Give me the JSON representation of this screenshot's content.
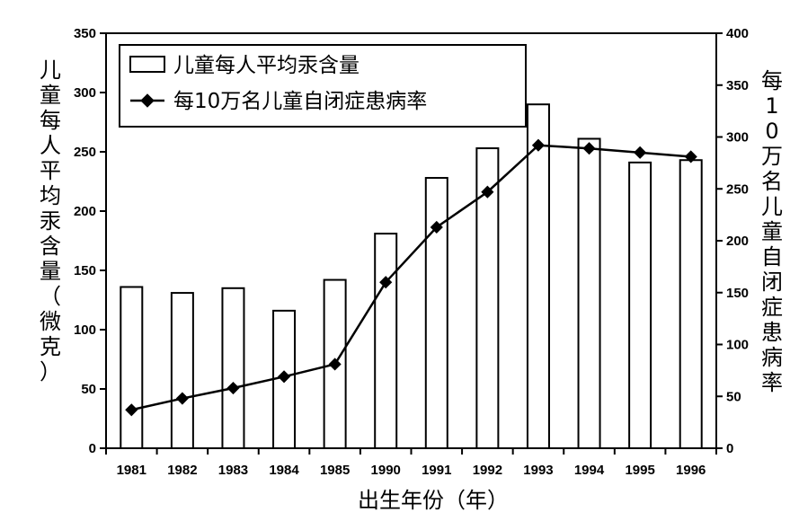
{
  "chart_data": {
    "type": "bar",
    "categories": [
      "1981",
      "1982",
      "1983",
      "1984",
      "1985",
      "1990",
      "1991",
      "1992",
      "1993",
      "1994",
      "1995",
      "1996"
    ],
    "series": [
      {
        "name": "儿童每人平均汞含量",
        "type": "bar",
        "axis": "left",
        "values": [
          136,
          131,
          135,
          116,
          142,
          181,
          228,
          253,
          290,
          261,
          241,
          243
        ]
      },
      {
        "name": "每10万名儿童自闭症患病率",
        "type": "line",
        "axis": "right",
        "values": [
          37,
          48,
          58,
          69,
          81,
          160,
          213,
          247,
          292,
          289,
          285,
          281
        ]
      }
    ],
    "xlabel": "出生年份（年）",
    "ylabel_left": "儿童每人平均汞含量（微克）",
    "ylabel_right": "每10万名儿童自闭症患病率",
    "ylim_left": [
      0,
      350
    ],
    "ylim_right": [
      0,
      400
    ],
    "yticks_left": [
      0,
      50,
      100,
      150,
      200,
      250,
      300,
      350
    ],
    "yticks_right": [
      0,
      50,
      100,
      150,
      200,
      250,
      300,
      350,
      400
    ],
    "grid": false,
    "legend_position": "top-left"
  }
}
